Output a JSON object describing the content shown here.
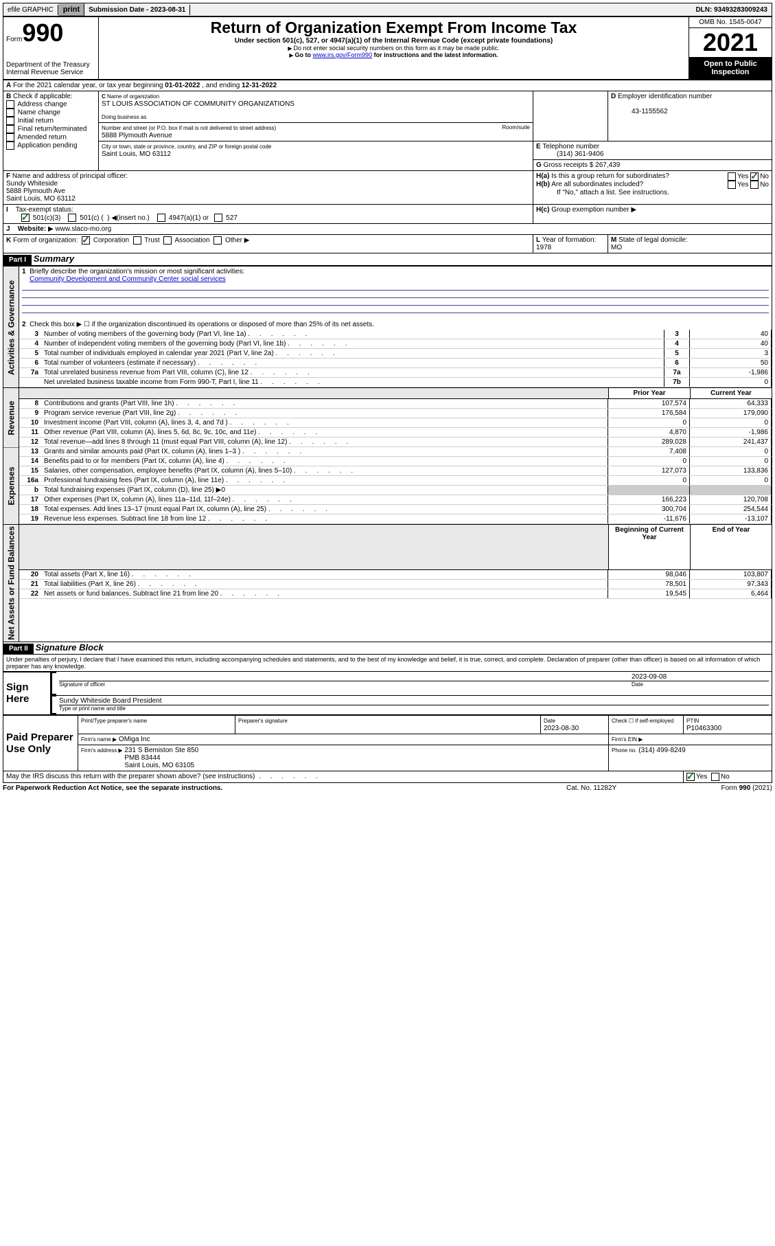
{
  "topbar": {
    "efile_label": "efile GRAPHIC",
    "print_btn": "print",
    "submission_label": "Submission Date -",
    "submission_date": "2023-08-31",
    "dln_label": "DLN:",
    "dln": "93493283009243"
  },
  "header": {
    "form_label": "Form",
    "form_num": "990",
    "dept": "Department of the Treasury",
    "irs": "Internal Revenue Service",
    "title": "Return of Organization Exempt From Income Tax",
    "subtitle": "Under section 501(c), 527, or 4947(a)(1) of the Internal Revenue Code (except private foundations)",
    "note1": "Do not enter social security numbers on this form as it may be made public.",
    "note2_pre": "Go to ",
    "note2_link": "www.irs.gov/Form990",
    "note2_post": " for instructions and the latest information.",
    "omb_label": "OMB No. 1545-0047",
    "year": "2021",
    "open_public": "Open to Public Inspection"
  },
  "boxA": {
    "line": "For the 2021 calendar year, or tax year beginning ",
    "begin": "01-01-2022",
    "mid": " , and ending ",
    "end": "12-31-2022"
  },
  "boxB": {
    "label": "Check if applicable:",
    "items": [
      "Address change",
      "Name change",
      "Initial return",
      "Final return/terminated",
      "Amended return",
      "Application pending"
    ]
  },
  "boxC": {
    "name_label": "Name of organization",
    "name": "ST LOUIS ASSOCIATION OF COMMUNITY ORGANIZATIONS",
    "dba_label": "Doing business as",
    "street_label": "Number and street (or P.O. box if mail is not delivered to street address)",
    "suite_label": "Room/suite",
    "street": "5888 Plymouth Avenue",
    "city_label": "City or town, state or province, country, and ZIP or foreign postal code",
    "city": "Saint Louis, MO  63112"
  },
  "boxD": {
    "label": "Employer identification number",
    "ein": "43-1155562"
  },
  "boxE": {
    "label": "Telephone number",
    "phone": "(314) 361-9406"
  },
  "boxG": {
    "label": "Gross receipts $",
    "amount": "267,439"
  },
  "boxF": {
    "label": "Name and address of principal officer:",
    "name": "Sundy Whiteside",
    "addr1": "5888 Plymouth Ave",
    "addr2": "Saint Louis, MO  63112"
  },
  "boxH": {
    "a_label": "Is this a group return for subordinates?",
    "b_label": "Are all subordinates included?",
    "b_note": "If \"No,\" attach a list. See instructions.",
    "c_label": "Group exemption number"
  },
  "boxI": {
    "label": "Tax-exempt status:",
    "opt1": "501(c)(3)",
    "opt2_pre": "501(c) (",
    "opt2_post": ") ◀(insert no.)",
    "opt3": "4947(a)(1) or",
    "opt4": "527"
  },
  "boxJ": {
    "label": "Website:",
    "url": "www.slaco-mo.org"
  },
  "boxK": {
    "label": "Form of organization:",
    "opts": [
      "Corporation",
      "Trust",
      "Association",
      "Other"
    ]
  },
  "boxL": {
    "label": "Year of formation:",
    "year": "1978"
  },
  "boxM": {
    "label": "State of legal domicile:",
    "state": "MO"
  },
  "part1": {
    "title": "Part I",
    "subtitle": "Summary",
    "side_gov": "Activities & Governance",
    "side_rev": "Revenue",
    "side_exp": "Expenses",
    "side_net": "Net Assets or Fund Balances",
    "line1_label": "Briefly describe the organization's mission or most significant activities:",
    "line1_text": "Community Development and Community Center social services",
    "line2": "Check this box ▶ ☐  if the organization discontinued its operations or disposed of more than 25% of its net assets.",
    "rows_top": [
      {
        "n": "3",
        "label": "Number of voting members of the governing body (Part VI, line 1a)",
        "box": "3",
        "val": "40"
      },
      {
        "n": "4",
        "label": "Number of independent voting members of the governing body (Part VI, line 1b)",
        "box": "4",
        "val": "40"
      },
      {
        "n": "5",
        "label": "Total number of individuals employed in calendar year 2021 (Part V, line 2a)",
        "box": "5",
        "val": "3"
      },
      {
        "n": "6",
        "label": "Total number of volunteers (estimate if necessary)",
        "box": "6",
        "val": "50"
      },
      {
        "n": "7a",
        "label": "Total unrelated business revenue from Part VIII, column (C), line 12",
        "box": "7a",
        "val": "-1,986"
      },
      {
        "n": "",
        "label": "Net unrelated business taxable income from Form 990-T, Part I, line 11",
        "box": "7b",
        "val": "0"
      }
    ],
    "col_prior": "Prior Year",
    "col_current": "Current Year",
    "col_begin": "Beginning of Current Year",
    "col_end": "End of Year",
    "rows_rev": [
      {
        "n": "8",
        "label": "Contributions and grants (Part VIII, line 1h)",
        "p": "107,574",
        "c": "64,333"
      },
      {
        "n": "9",
        "label": "Program service revenue (Part VIII, line 2g)",
        "p": "176,584",
        "c": "179,090"
      },
      {
        "n": "10",
        "label": "Investment income (Part VIII, column (A), lines 3, 4, and 7d )",
        "p": "0",
        "c": "0"
      },
      {
        "n": "11",
        "label": "Other revenue (Part VIII, column (A), lines 5, 6d, 8c, 9c, 10c, and 11e)",
        "p": "4,870",
        "c": "-1,986"
      },
      {
        "n": "12",
        "label": "Total revenue—add lines 8 through 11 (must equal Part VIII, column (A), line 12)",
        "p": "289,028",
        "c": "241,437"
      }
    ],
    "rows_exp": [
      {
        "n": "13",
        "label": "Grants and similar amounts paid (Part IX, column (A), lines 1–3 )",
        "p": "7,408",
        "c": "0"
      },
      {
        "n": "14",
        "label": "Benefits paid to or for members (Part IX, column (A), line 4)",
        "p": "0",
        "c": "0"
      },
      {
        "n": "15",
        "label": "Salaries, other compensation, employee benefits (Part IX, column (A), lines 5–10)",
        "p": "127,073",
        "c": "133,836"
      },
      {
        "n": "16a",
        "label": "Professional fundraising fees (Part IX, column (A), line 11e)",
        "p": "0",
        "c": "0"
      },
      {
        "n": "b",
        "label": "Total fundraising expenses (Part IX, column (D), line 25) ▶0",
        "p": "",
        "c": "",
        "grey": true
      },
      {
        "n": "17",
        "label": "Other expenses (Part IX, column (A), lines 11a–11d, 11f–24e)",
        "p": "166,223",
        "c": "120,708"
      },
      {
        "n": "18",
        "label": "Total expenses. Add lines 13–17 (must equal Part IX, column (A), line 25)",
        "p": "300,704",
        "c": "254,544"
      },
      {
        "n": "19",
        "label": "Revenue less expenses. Subtract line 18 from line 12",
        "p": "-11,676",
        "c": "-13,107"
      }
    ],
    "rows_net": [
      {
        "n": "20",
        "label": "Total assets (Part X, line 16)",
        "p": "98,046",
        "c": "103,807"
      },
      {
        "n": "21",
        "label": "Total liabilities (Part X, line 26)",
        "p": "78,501",
        "c": "97,343"
      },
      {
        "n": "22",
        "label": "Net assets or fund balances. Subtract line 21 from line 20",
        "p": "19,545",
        "c": "6,464"
      }
    ]
  },
  "part2": {
    "title": "Part II",
    "subtitle": "Signature Block",
    "declaration": "Under penalties of perjury, I declare that I have examined this return, including accompanying schedules and statements, and to the best of my knowledge and belief, it is true, correct, and complete. Declaration of preparer (other than officer) is based on all information of which preparer has any knowledge.",
    "sign_here": "Sign Here",
    "sig_officer": "Signature of officer",
    "sig_date": "Date",
    "sig_date_val": "2023-09-08",
    "sig_name": "Sundy Whiteside  Board President",
    "sig_name_label": "Type or print name and title",
    "paid_label": "Paid Preparer Use Only",
    "prep_name_label": "Print/Type preparer's name",
    "prep_sig_label": "Preparer's signature",
    "prep_date_label": "Date",
    "prep_date": "2023-08-30",
    "prep_check_label": "Check ☐ if self-employed",
    "ptin_label": "PTIN",
    "ptin": "P10463300",
    "firm_name_label": "Firm's name    ▶",
    "firm_name": "OMiga Inc",
    "firm_ein_label": "Firm's EIN ▶",
    "firm_addr_label": "Firm's address ▶",
    "firm_addr": "231 S Bemiston Ste 850\nPMB 83444\nSaint Louis, MO  63105",
    "firm_phone_label": "Phone no.",
    "firm_phone": "(314) 499-8249",
    "discuss": "May the IRS discuss this return with the preparer shown above? (see instructions)"
  },
  "footer": {
    "paperwork": "For Paperwork Reduction Act Notice, see the separate instructions.",
    "cat": "Cat. No. 11282Y",
    "form": "Form 990 (2021)"
  },
  "labels": {
    "yes": "Yes",
    "no": "No",
    "b": "B",
    "c": "C",
    "d": "D",
    "e": "E",
    "f": "F",
    "g": "G",
    "ha": "H(a)",
    "hb": "H(b)",
    "hc": "H(c)",
    "i": "I",
    "j": "J",
    "k": "K",
    "l": "L",
    "m": "M",
    "a": "A"
  }
}
